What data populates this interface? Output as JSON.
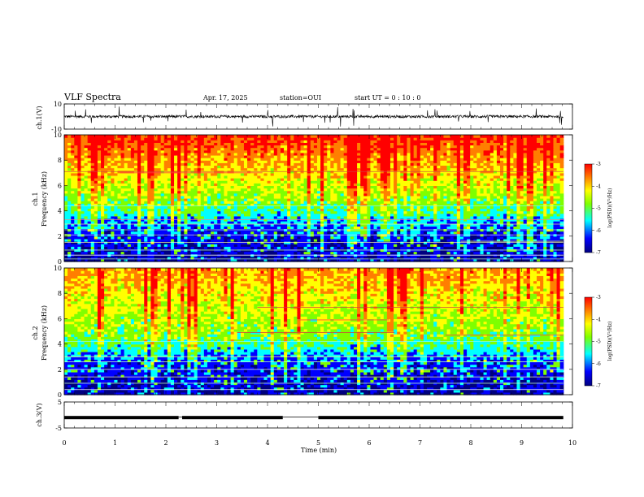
{
  "header": {
    "title": "VLF Spectra",
    "date": "Apr. 17, 2025",
    "station": "station=OUI",
    "start": "start  UT  =   0  : 10 : 0"
  },
  "chart_data": [
    {
      "type": "line",
      "panel": "ch1-waveform",
      "ylabel": "ch.1(V)",
      "ylim": [
        -10,
        10
      ],
      "yticks": [
        "10",
        "-10"
      ],
      "series": [
        {
          "description": "noisy signal around y≈0 with spikes",
          "baseline": 0
        }
      ]
    },
    {
      "type": "heatmap",
      "panel": "ch1-spectrogram",
      "ylabel_line1": "ch.1",
      "ylabel_line2": "Frequency (kHz)",
      "ylim": [
        0,
        10
      ],
      "yticks": [
        "0",
        "2",
        "4",
        "6",
        "8",
        "10"
      ],
      "colorbar": {
        "label": "log(PSD)(V²/Hz)",
        "range": [
          -7,
          -3
        ],
        "ticks": [
          "-3",
          "-4",
          "-5",
          "-6",
          "-7"
        ]
      }
    },
    {
      "type": "heatmap",
      "panel": "ch2-spectrogram",
      "ylabel_line1": "ch.2",
      "ylabel_line2": "Frequency (kHz)",
      "ylim": [
        0,
        10
      ],
      "yticks": [
        "0",
        "2",
        "4",
        "6",
        "8",
        "10"
      ],
      "colorbar": {
        "label": "log(PSD)(V²/Hz)",
        "range": [
          -7,
          -3
        ],
        "ticks": [
          "-3",
          "-4",
          "-5",
          "-6",
          "-7"
        ]
      }
    },
    {
      "type": "line",
      "panel": "ch3-waveform",
      "ylabel": "ch.3(V)",
      "ylim": [
        -5,
        5
      ],
      "yticks": [
        "5",
        "-5"
      ],
      "series": [
        {
          "description": "flat thick signal near y≈-1, gaps near 2.3 and 4.3–5 min",
          "baseline": -1
        }
      ]
    }
  ],
  "xaxis": {
    "label": "Time (min)",
    "xlim": [
      0,
      10
    ],
    "ticks": [
      "0",
      "1",
      "2",
      "3",
      "4",
      "5",
      "6",
      "7",
      "8",
      "9",
      "10"
    ],
    "data_end": 9.82
  },
  "colors": {
    "colormap": [
      "#00007f",
      "#0000ff",
      "#00ffff",
      "#7fff00",
      "#ffff00",
      "#ff7f00",
      "#ff0000"
    ]
  }
}
